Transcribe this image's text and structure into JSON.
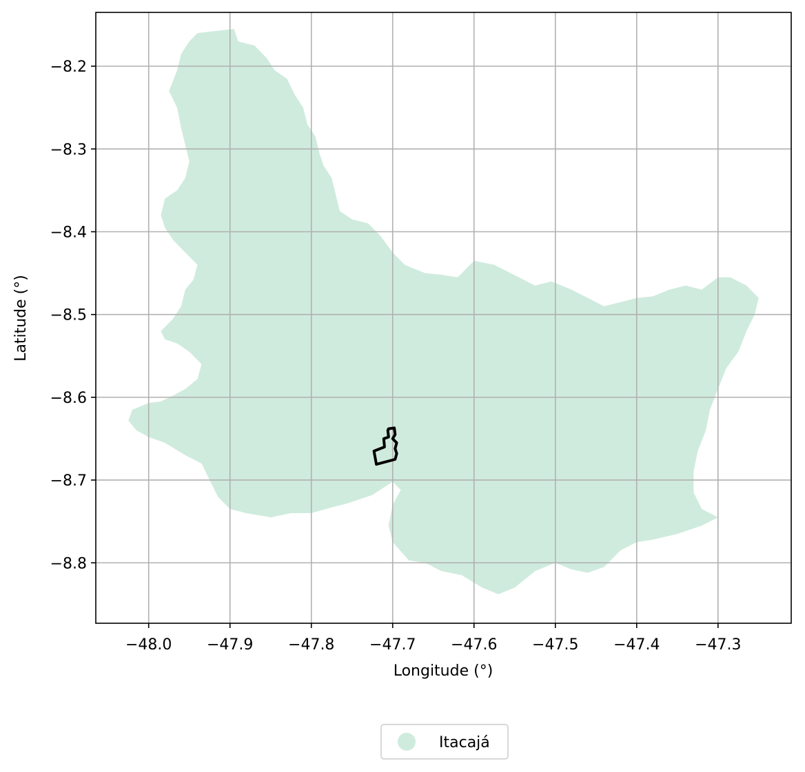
{
  "chart_data": {
    "type": "map",
    "xlabel": "Longitude (°)",
    "ylabel": "Latitude (°)",
    "xlim": [
      -48.065,
      -47.21
    ],
    "ylim": [
      -8.873,
      -8.135
    ],
    "x_ticks": [
      -48.0,
      -47.9,
      -47.8,
      -47.7,
      -47.6,
      -47.5,
      -47.4,
      -47.3
    ],
    "x_tick_labels": [
      "−48.0",
      "−47.9",
      "−47.8",
      "−47.7",
      "−47.6",
      "−47.5",
      "−47.4",
      "−47.3"
    ],
    "y_ticks": [
      -8.2,
      -8.3,
      -8.4,
      -8.5,
      -8.6,
      -8.7,
      -8.8
    ],
    "y_tick_labels": [
      "−8.2",
      "−8.3",
      "−8.4",
      "−8.5",
      "−8.6",
      "−8.7",
      "−8.8"
    ],
    "grid": true,
    "legend_position": "bottom-center",
    "layers": [
      {
        "name": "Itacajá",
        "kind": "filled-polygon",
        "fill_color": "#cfebdd",
        "legend": true,
        "coords": [
          [
            -47.94,
            -8.16
          ],
          [
            -47.895,
            -8.155
          ],
          [
            -47.89,
            -8.17
          ],
          [
            -47.87,
            -8.175
          ],
          [
            -47.855,
            -8.19
          ],
          [
            -47.845,
            -8.205
          ],
          [
            -47.83,
            -8.215
          ],
          [
            -47.82,
            -8.235
          ],
          [
            -47.81,
            -8.25
          ],
          [
            -47.805,
            -8.27
          ],
          [
            -47.795,
            -8.285
          ],
          [
            -47.79,
            -8.305
          ],
          [
            -47.785,
            -8.32
          ],
          [
            -47.775,
            -8.335
          ],
          [
            -47.77,
            -8.355
          ],
          [
            -47.765,
            -8.375
          ],
          [
            -47.75,
            -8.385
          ],
          [
            -47.73,
            -8.39
          ],
          [
            -47.715,
            -8.405
          ],
          [
            -47.7,
            -8.425
          ],
          [
            -47.685,
            -8.44
          ],
          [
            -47.66,
            -8.45
          ],
          [
            -47.64,
            -8.452
          ],
          [
            -47.62,
            -8.455
          ],
          [
            -47.6,
            -8.435
          ],
          [
            -47.575,
            -8.44
          ],
          [
            -47.545,
            -8.455
          ],
          [
            -47.525,
            -8.465
          ],
          [
            -47.505,
            -8.46
          ],
          [
            -47.48,
            -8.47
          ],
          [
            -47.46,
            -8.48
          ],
          [
            -47.44,
            -8.49
          ],
          [
            -47.42,
            -8.485
          ],
          [
            -47.4,
            -8.48
          ],
          [
            -47.38,
            -8.478
          ],
          [
            -47.36,
            -8.47
          ],
          [
            -47.34,
            -8.465
          ],
          [
            -47.32,
            -8.47
          ],
          [
            -47.3,
            -8.455
          ],
          [
            -47.285,
            -8.455
          ],
          [
            -47.265,
            -8.465
          ],
          [
            -47.25,
            -8.48
          ],
          [
            -47.255,
            -8.5
          ],
          [
            -47.265,
            -8.52
          ],
          [
            -47.275,
            -8.545
          ],
          [
            -47.29,
            -8.565
          ],
          [
            -47.3,
            -8.59
          ],
          [
            -47.31,
            -8.615
          ],
          [
            -47.315,
            -8.64
          ],
          [
            -47.325,
            -8.665
          ],
          [
            -47.33,
            -8.69
          ],
          [
            -47.33,
            -8.715
          ],
          [
            -47.32,
            -8.735
          ],
          [
            -47.3,
            -8.745
          ],
          [
            -47.32,
            -8.755
          ],
          [
            -47.35,
            -8.765
          ],
          [
            -47.38,
            -8.772
          ],
          [
            -47.4,
            -8.775
          ],
          [
            -47.42,
            -8.785
          ],
          [
            -47.44,
            -8.805
          ],
          [
            -47.46,
            -8.812
          ],
          [
            -47.48,
            -8.808
          ],
          [
            -47.5,
            -8.8
          ],
          [
            -47.525,
            -8.81
          ],
          [
            -47.55,
            -8.83
          ],
          [
            -47.57,
            -8.838
          ],
          [
            -47.59,
            -8.83
          ],
          [
            -47.615,
            -8.815
          ],
          [
            -47.64,
            -8.81
          ],
          [
            -47.66,
            -8.8
          ],
          [
            -47.68,
            -8.797
          ],
          [
            -47.7,
            -8.775
          ],
          [
            -47.705,
            -8.755
          ],
          [
            -47.7,
            -8.73
          ],
          [
            -47.69,
            -8.712
          ],
          [
            -47.7,
            -8.702
          ],
          [
            -47.725,
            -8.718
          ],
          [
            -47.755,
            -8.728
          ],
          [
            -47.775,
            -8.733
          ],
          [
            -47.8,
            -8.74
          ],
          [
            -47.825,
            -8.74
          ],
          [
            -47.85,
            -8.745
          ],
          [
            -47.88,
            -8.74
          ],
          [
            -47.9,
            -8.735
          ],
          [
            -47.915,
            -8.72
          ],
          [
            -47.925,
            -8.7
          ],
          [
            -47.935,
            -8.68
          ],
          [
            -47.955,
            -8.67
          ],
          [
            -47.98,
            -8.655
          ],
          [
            -48.0,
            -8.648
          ],
          [
            -48.015,
            -8.64
          ],
          [
            -48.025,
            -8.628
          ],
          [
            -48.02,
            -8.615
          ],
          [
            -48.0,
            -8.607
          ],
          [
            -47.985,
            -8.605
          ],
          [
            -47.97,
            -8.598
          ],
          [
            -47.955,
            -8.59
          ],
          [
            -47.94,
            -8.578
          ],
          [
            -47.935,
            -8.56
          ],
          [
            -47.95,
            -8.545
          ],
          [
            -47.965,
            -8.535
          ],
          [
            -47.98,
            -8.53
          ],
          [
            -47.985,
            -8.52
          ],
          [
            -47.97,
            -8.505
          ],
          [
            -47.96,
            -8.49
          ],
          [
            -47.955,
            -8.47
          ],
          [
            -47.945,
            -8.458
          ],
          [
            -47.94,
            -8.44
          ],
          [
            -47.955,
            -8.425
          ],
          [
            -47.97,
            -8.41
          ],
          [
            -47.98,
            -8.395
          ],
          [
            -47.985,
            -8.38
          ],
          [
            -47.98,
            -8.36
          ],
          [
            -47.965,
            -8.35
          ],
          [
            -47.955,
            -8.335
          ],
          [
            -47.95,
            -8.315
          ],
          [
            -47.955,
            -8.295
          ],
          [
            -47.96,
            -8.275
          ],
          [
            -47.965,
            -8.25
          ],
          [
            -47.975,
            -8.23
          ],
          [
            -47.965,
            -8.205
          ],
          [
            -47.96,
            -8.185
          ],
          [
            -47.95,
            -8.17
          ]
        ]
      },
      {
        "name": "",
        "kind": "outline-polygon",
        "stroke_color": "#000000",
        "legend": false,
        "coords": [
          [
            -47.705,
            -8.638
          ],
          [
            -47.698,
            -8.637
          ],
          [
            -47.697,
            -8.645
          ],
          [
            -47.7,
            -8.65
          ],
          [
            -47.695,
            -8.655
          ],
          [
            -47.697,
            -8.662
          ],
          [
            -47.695,
            -8.668
          ],
          [
            -47.697,
            -8.675
          ],
          [
            -47.72,
            -8.681
          ],
          [
            -47.723,
            -8.665
          ],
          [
            -47.71,
            -8.66
          ],
          [
            -47.711,
            -8.65
          ],
          [
            -47.705,
            -8.648
          ],
          [
            -47.706,
            -8.64
          ]
        ]
      }
    ]
  },
  "legend": {
    "items": [
      {
        "label": "Itacajá",
        "color": "#cfebdd"
      }
    ]
  }
}
